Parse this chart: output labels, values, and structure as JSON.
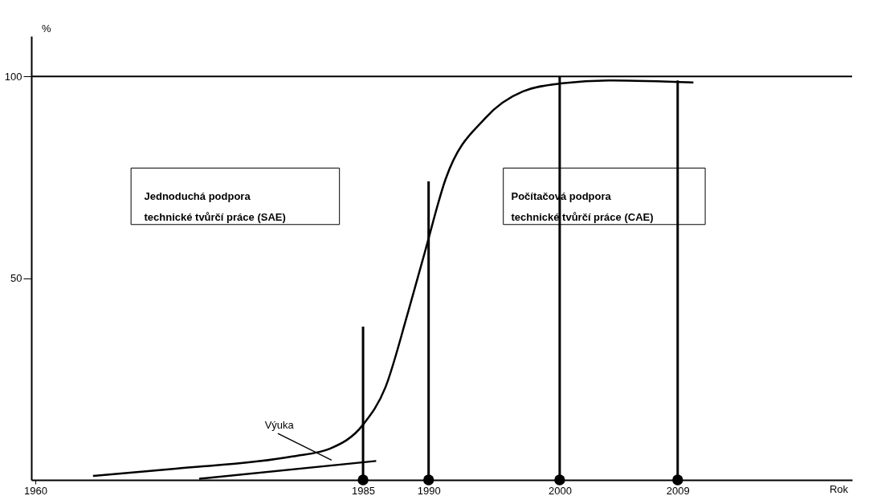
{
  "chart_data": {
    "type": "line",
    "xlabel": "Rok",
    "ylabel": "%",
    "xlim": [
      1960,
      2022
    ],
    "ylim": [
      0,
      110
    ],
    "xticks": [
      1960,
      1985,
      1990,
      2000,
      2009
    ],
    "yticks": [
      50,
      100
    ],
    "grid": false,
    "marker": "none",
    "line_style": "solid",
    "series": [
      {
        "color": "#000000",
        "x": [
          1964.4,
          1970.7,
          1979.6,
          1982.5,
          1985,
          1986.7,
          1988.4,
          1989.7,
          1991.3,
          1994.3,
          1997.2,
          2000.2,
          2003.7,
          2010.2
        ],
        "values": [
          1.0,
          2.8,
          5.8,
          7.8,
          13.7,
          22.9,
          41.2,
          56.3,
          74.6,
          89.6,
          96.3,
          98.3,
          99,
          98.5
        ]
      },
      {
        "color": "#000000",
        "x": [
          1972.5,
          1986
        ],
        "values": [
          0.3,
          4.7
        ]
      },
      {
        "type": "bar",
        "color": "#000000",
        "x": [
          1985,
          1990,
          2000,
          2009
        ],
        "values": [
          38,
          74,
          100,
          99
        ]
      },
      {
        "type": "scatter",
        "marker": "circle",
        "color": "#000000",
        "x": [
          1985,
          1990,
          2000,
          2009
        ],
        "values": [
          0,
          0,
          0,
          0
        ]
      }
    ],
    "ref_lines": [
      {
        "axis": "y",
        "value": 100,
        "color": "#000000"
      }
    ],
    "annotations": [
      "Výuka",
      "Jednoduchá podpora\ntechnické tvůrčí práce (SAE)",
      "Počítačová podpora\ntechnické tvůrčí práce (CAE)"
    ]
  }
}
